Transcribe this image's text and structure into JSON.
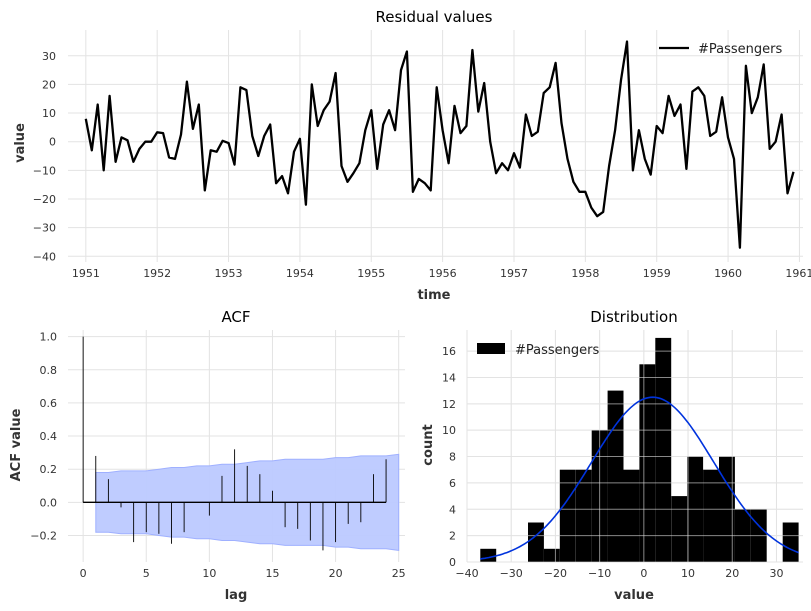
{
  "chart_data": [
    {
      "type": "line",
      "title": "Residual values",
      "xlabel": "time",
      "ylabel": "value",
      "xlim": [
        1950.75,
        1961.05
      ],
      "ylim": [
        -42,
        39
      ],
      "xticks": [
        1951,
        1952,
        1953,
        1954,
        1955,
        1956,
        1957,
        1958,
        1959,
        1960,
        1961
      ],
      "yticks": [
        -40,
        -30,
        -20,
        -10,
        0,
        10,
        20,
        30
      ],
      "legend": "top-right",
      "series": [
        {
          "name": "#Passengers",
          "color": "#000000",
          "start": 1951.0,
          "step": 0.08333,
          "values": [
            8,
            -3,
            13,
            -10,
            16,
            -7,
            1.5,
            0.5,
            -7,
            -2.5,
            0,
            0,
            3.3,
            3,
            -5.5,
            -6,
            2.5,
            21,
            4.5,
            13,
            -17,
            -3,
            -3.5,
            0.3,
            -0.5,
            -8,
            19,
            18,
            2,
            -5,
            2,
            6,
            -14.5,
            -12,
            -18,
            -3.5,
            1,
            -22,
            20,
            5.5,
            11,
            14,
            24,
            -8.5,
            -14,
            -11,
            -7.5,
            4,
            11,
            -9.5,
            6,
            11,
            4,
            25,
            31.5,
            -17.5,
            -13,
            -14.5,
            -17,
            19,
            4,
            -7.5,
            12.5,
            3,
            5.5,
            32,
            10.5,
            20.5,
            0,
            -11,
            -7.5,
            -10,
            -4,
            -9,
            9.5,
            2,
            3.5,
            17,
            19,
            27.5,
            6.5,
            -6,
            -14,
            -17.5,
            -17.5,
            -23,
            -26,
            -24.5,
            -8.5,
            4,
            21.5,
            35,
            -10,
            4,
            -6,
            -11.5,
            5.5,
            3,
            16,
            9,
            13,
            -9.5,
            17.5,
            19,
            16,
            2,
            3.5,
            15.5,
            1.5,
            -6,
            -37,
            26.5,
            10,
            15.5,
            27,
            -2.5,
            0,
            9.5,
            -18,
            -10.5
          ]
        }
      ]
    },
    {
      "type": "bar",
      "title": "ACF",
      "xlabel": "lag",
      "ylabel": "ACF value",
      "xlim": [
        -1.2,
        25.5
      ],
      "ylim": [
        -0.36,
        1.04
      ],
      "xticks": [
        0,
        5,
        10,
        15,
        20,
        25
      ],
      "yticks": [
        -0.2,
        0.0,
        0.2,
        0.4,
        0.6,
        0.8,
        1.0
      ],
      "lags": [
        0,
        1,
        2,
        3,
        4,
        5,
        6,
        7,
        8,
        9,
        10,
        11,
        12,
        13,
        14,
        15,
        16,
        17,
        18,
        19,
        20,
        21,
        22,
        23,
        24
      ],
      "values": [
        1.0,
        0.28,
        0.14,
        -0.03,
        -0.24,
        -0.18,
        -0.19,
        -0.25,
        -0.18,
        0.0,
        -0.08,
        0.16,
        0.32,
        0.22,
        0.17,
        0.07,
        -0.15,
        -0.16,
        -0.23,
        -0.29,
        -0.24,
        -0.13,
        -0.12,
        0.17,
        0.26
      ],
      "confidence_band": [
        0.18,
        0.18,
        0.19,
        0.19,
        0.19,
        0.2,
        0.21,
        0.21,
        0.22,
        0.22,
        0.23,
        0.23,
        0.24,
        0.25,
        0.25,
        0.26,
        0.26,
        0.26,
        0.26,
        0.27,
        0.27,
        0.28,
        0.28,
        0.28,
        0.29
      ],
      "band_color": "#bcc9ff",
      "stem_color": "#000000"
    },
    {
      "type": "bar",
      "title": "Distribution",
      "xlabel": "value",
      "ylabel": "count",
      "xlim": [
        -40,
        36
      ],
      "ylim": [
        0,
        17.6
      ],
      "xticks": [
        -40,
        -30,
        -20,
        -10,
        0,
        10,
        20,
        30
      ],
      "yticks": [
        0,
        2,
        4,
        6,
        8,
        10,
        12,
        14,
        16
      ],
      "legend": "top-left",
      "series_name": "#Passengers",
      "bar_color": "#000000",
      "bin_edges": [
        -37,
        -33.4,
        -29.8,
        -26.2,
        -22.6,
        -19.0,
        -15.4,
        -11.8,
        -8.2,
        -4.6,
        -1.0,
        2.6,
        6.2,
        9.8,
        13.4,
        17.0,
        20.6,
        24.2,
        27.8,
        31.4,
        35.0
      ],
      "counts": [
        1,
        0,
        0,
        3,
        1,
        7,
        7,
        10,
        13,
        7,
        15,
        17,
        5,
        8,
        7,
        8,
        4,
        4,
        0,
        3
      ],
      "kde_color": "#0033dd",
      "kde_mean": 2,
      "kde_std": 13.8,
      "kde_scale": 12.5
    }
  ]
}
